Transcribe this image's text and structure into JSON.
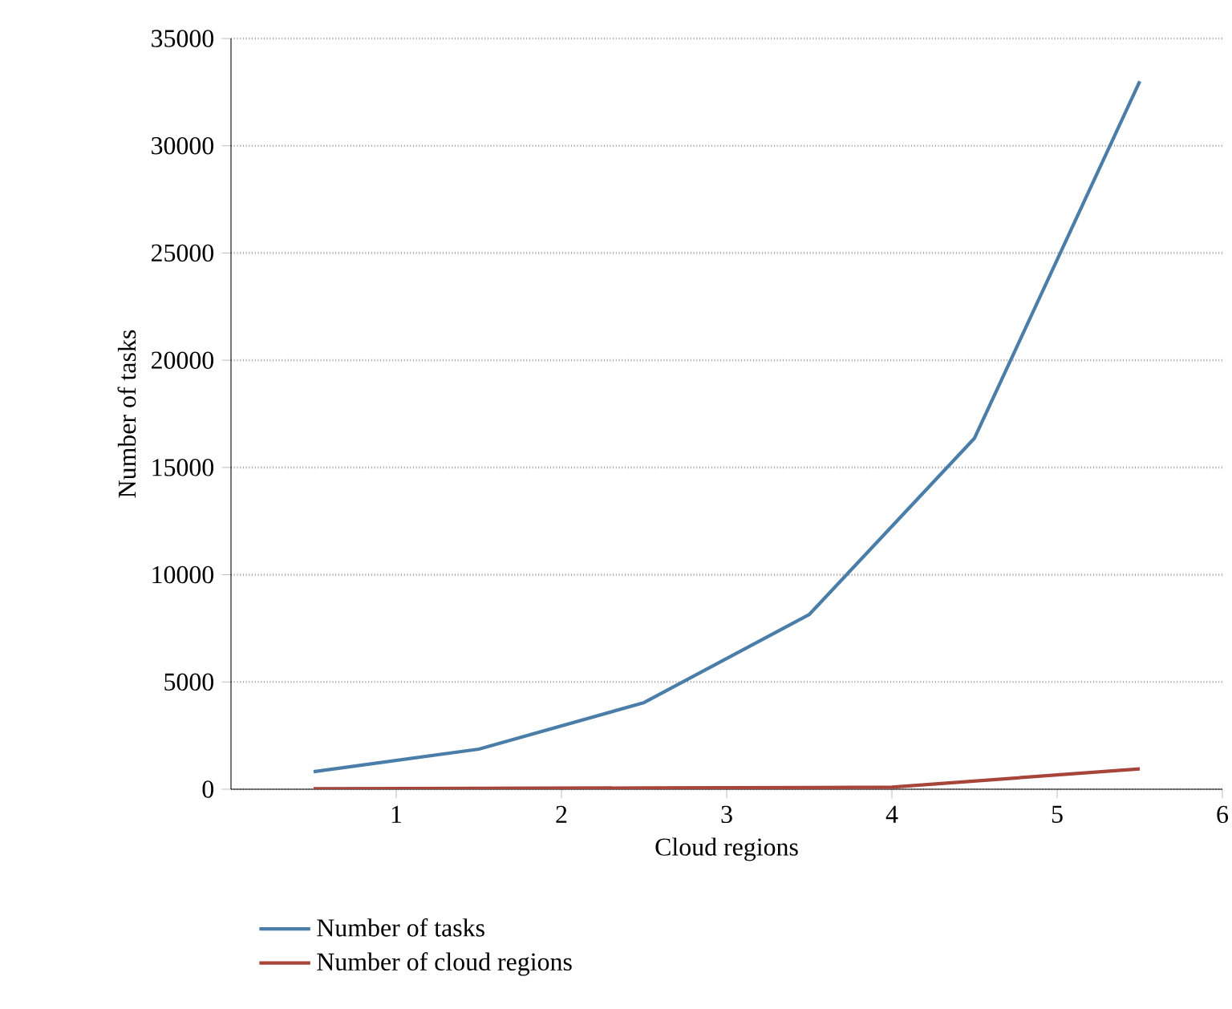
{
  "chart_data": {
    "type": "line",
    "xlabel": "Cloud regions",
    "ylabel": "Number of tasks",
    "xlim": [
      0,
      6
    ],
    "xticks": [
      1,
      2,
      3,
      4,
      5,
      6
    ],
    "ylim": [
      0,
      35000
    ],
    "yticks": [
      0,
      5000,
      10000,
      15000,
      20000,
      25000,
      30000,
      35000
    ],
    "grid": "y",
    "legend": "bottom",
    "marker": "none",
    "line_style": "solid",
    "series": [
      {
        "name": "Number of tasks",
        "color": "#4a7ea8",
        "x": [
          0.5,
          1.5,
          2.5,
          3.5,
          4.5,
          5.5
        ],
        "values": [
          820,
          1870,
          4040,
          8150,
          16370,
          33000
        ]
      },
      {
        "name": "Number of cloud regions",
        "color": "#a8453a",
        "x": [
          0.5,
          1.5,
          2.5,
          3.5,
          4,
          5.5
        ],
        "values": [
          20,
          40,
          60,
          80,
          100,
          950
        ]
      }
    ]
  }
}
